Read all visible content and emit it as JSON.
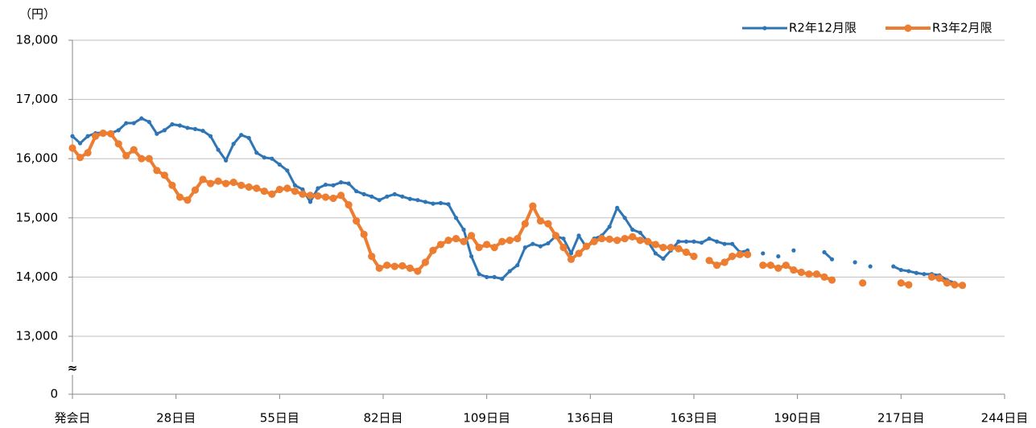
{
  "chart_data": {
    "type": "line",
    "y_unit": "（円）",
    "xlim": [
      1,
      244
    ],
    "xticks": [
      {
        "value": 1,
        "label": "発会日"
      },
      {
        "value": 28,
        "label": "28日目"
      },
      {
        "value": 55,
        "label": "55日目"
      },
      {
        "value": 82,
        "label": "82日目"
      },
      {
        "value": 109,
        "label": "109日目"
      },
      {
        "value": 136,
        "label": "136日目"
      },
      {
        "value": 163,
        "label": "163日目"
      },
      {
        "value": 190,
        "label": "190日目"
      },
      {
        "value": 217,
        "label": "217日目"
      },
      {
        "value": 244,
        "label": "244日目"
      }
    ],
    "ylim": [
      13000,
      18000
    ],
    "yticks": [
      {
        "value": 13000,
        "label": "13,000"
      },
      {
        "value": 14000,
        "label": "14,000"
      },
      {
        "value": 15000,
        "label": "15,000"
      },
      {
        "value": 16000,
        "label": "16,000"
      },
      {
        "value": 17000,
        "label": "17,000"
      },
      {
        "value": 18000,
        "label": "18,000"
      }
    ],
    "y_base_tick": 0,
    "axis_break": "≈",
    "grid": true,
    "legend": "top-right",
    "x": [
      1,
      3,
      5,
      7,
      9,
      11,
      13,
      15,
      17,
      19,
      21,
      23,
      25,
      27,
      29,
      31,
      33,
      35,
      37,
      39,
      41,
      43,
      45,
      47,
      49,
      51,
      53,
      55,
      57,
      59,
      61,
      63,
      65,
      67,
      69,
      71,
      73,
      75,
      77,
      79,
      81,
      83,
      85,
      87,
      89,
      91,
      93,
      95,
      97,
      99,
      101,
      103,
      105,
      107,
      109,
      111,
      113,
      115,
      117,
      119,
      121,
      123,
      125,
      127,
      129,
      131,
      133,
      135,
      137,
      139,
      141,
      143,
      145,
      147,
      149,
      151,
      153,
      155,
      157,
      159,
      161,
      163,
      165,
      167,
      169,
      171,
      173,
      175,
      177,
      179,
      181,
      183,
      185,
      187,
      189,
      191,
      193,
      195,
      197,
      199,
      201,
      203,
      205,
      207,
      209,
      211,
      213,
      215,
      217,
      219,
      221,
      223,
      225,
      227,
      229,
      231,
      233,
      235,
      237
    ],
    "series": [
      {
        "name": "R2年12月限",
        "color": "#2e75b6",
        "values": [
          16380,
          16260,
          16380,
          16430,
          16440,
          16430,
          16480,
          16600,
          16600,
          16680,
          16620,
          16420,
          16480,
          16580,
          16560,
          16520,
          16500,
          16470,
          16380,
          16150,
          15970,
          16250,
          16400,
          16350,
          16100,
          16020,
          16000,
          15900,
          15800,
          15550,
          15480,
          15270,
          15500,
          15560,
          15550,
          15600,
          15580,
          15450,
          15400,
          15360,
          15300,
          15360,
          15400,
          15360,
          15320,
          15300,
          15270,
          15240,
          15250,
          15230,
          15000,
          14800,
          14350,
          14050,
          14000,
          14000,
          13970,
          14100,
          14200,
          14500,
          14560,
          14520,
          14570,
          14690,
          14650,
          14400,
          14700,
          14500,
          14650,
          14700,
          14850,
          15170,
          15000,
          14800,
          14750,
          14600,
          14400,
          14310,
          14450,
          14600,
          14600,
          14600,
          14580,
          14650,
          14600,
          14560,
          14560,
          14420,
          14450,
          null,
          14400,
          null,
          14350,
          null,
          14450,
          null,
          null,
          null,
          14420,
          14300,
          null,
          null,
          14250,
          null,
          14180,
          null,
          null,
          14180,
          14120,
          14100,
          14070,
          14050,
          14050,
          14030,
          13950,
          13900,
          null,
          null,
          null
        ]
      },
      {
        "name": "R3年2月限",
        "color": "#ed7d31",
        "values": [
          16180,
          16020,
          16100,
          16380,
          16430,
          16420,
          16250,
          16050,
          16150,
          16000,
          16000,
          15800,
          15720,
          15550,
          15350,
          15300,
          15470,
          15650,
          15580,
          15620,
          15580,
          15600,
          15550,
          15520,
          15500,
          15450,
          15400,
          15480,
          15500,
          15450,
          15400,
          15380,
          15370,
          15350,
          15330,
          15380,
          15220,
          14950,
          14720,
          14350,
          14150,
          14200,
          14180,
          14190,
          14150,
          14100,
          14250,
          14450,
          14550,
          14620,
          14650,
          14600,
          14700,
          14500,
          14550,
          14500,
          14600,
          14620,
          14650,
          14900,
          15200,
          14950,
          14900,
          14700,
          14500,
          14300,
          14400,
          14520,
          14600,
          14650,
          14640,
          14620,
          14650,
          14680,
          14620,
          14600,
          14550,
          14500,
          14500,
          14480,
          14420,
          14350,
          null,
          14280,
          14200,
          14250,
          14350,
          14380,
          14380,
          null,
          14200,
          14200,
          14150,
          14200,
          14120,
          14080,
          14050,
          14050,
          14000,
          13950,
          null,
          null,
          null,
          13900,
          null,
          null,
          null,
          null,
          13900,
          13870,
          null,
          null,
          14000,
          13980,
          13900,
          13870,
          13860,
          null,
          null
        ]
      }
    ]
  }
}
